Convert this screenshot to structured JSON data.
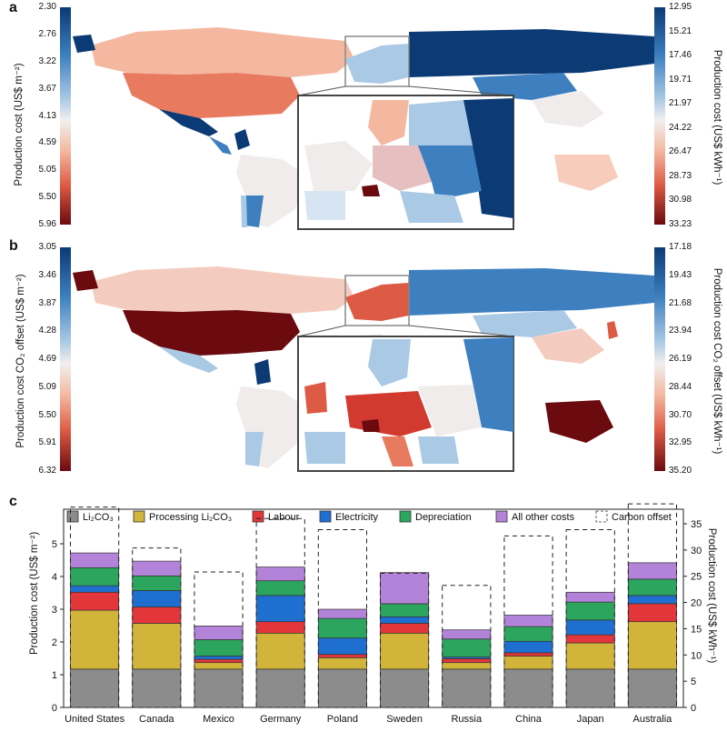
{
  "panels": {
    "a": {
      "letter": "a",
      "left_label": "Production cost (US$ m⁻²)",
      "left_ticks": [
        "2.30",
        "2.76",
        "3.22",
        "3.67",
        "4.13",
        "4.59",
        "5.05",
        "5.50",
        "5.96"
      ],
      "right_label": "Production cost (US$ kWh⁻¹)",
      "right_ticks": [
        "12.95",
        "15.21",
        "17.46",
        "19.71",
        "21.97",
        "24.22",
        "26.47",
        "28.73",
        "30.98",
        "33.23"
      ]
    },
    "b": {
      "letter": "b",
      "left_label": "Production cost CO₂ offset (US$ m⁻²)",
      "left_ticks": [
        "3.05",
        "3.46",
        "3.87",
        "4.28",
        "4.69",
        "5.09",
        "5.50",
        "5.91",
        "6.32"
      ],
      "right_label": "Production cost CO₂ offset (US$ kWh⁻¹)",
      "right_ticks": [
        "17.18",
        "19.43",
        "21.68",
        "23.94",
        "26.19",
        "28.44",
        "30.70",
        "32.95",
        "35.20"
      ]
    }
  },
  "colors": {
    "dark_blue": "#0b3a75",
    "mid_blue": "#3d7fbf",
    "light_blue": "#a9c9e4",
    "neutral": "#f2efee",
    "light_red": "#f4b8a0",
    "mid_red": "#dd5a45",
    "dark_red": "#6b0a0f",
    "ocean_border": "#888888"
  },
  "chart_data": {
    "type": "bar",
    "letter": "c",
    "categories": [
      "United States",
      "Canada",
      "Mexico",
      "Germany",
      "Poland",
      "Sweden",
      "Russia",
      "China",
      "Japan",
      "Australia"
    ],
    "ylabel": "Production cost (US$ m⁻²)",
    "y2label": "Production cost (US$ kWh⁻¹)",
    "ylim": [
      0,
      5
    ],
    "y2lim": [
      0,
      35
    ],
    "yticks": [
      0,
      1,
      2,
      3,
      4,
      5
    ],
    "y2ticks": [
      0,
      5,
      10,
      15,
      20,
      25,
      30,
      35
    ],
    "legend_position": "top",
    "series": [
      {
        "name": "Li₂CO₃",
        "color": "#8c8c8c",
        "values": [
          1.17,
          1.17,
          1.17,
          1.17,
          1.17,
          1.17,
          1.17,
          1.17,
          1.17,
          1.17
        ]
      },
      {
        "name": "Processing Li₂CO₃",
        "color": "#d2b43a",
        "values": [
          1.8,
          1.4,
          0.2,
          1.1,
          0.35,
          1.1,
          0.2,
          0.4,
          0.8,
          1.45
        ]
      },
      {
        "name": "Labour",
        "color": "#e2363a",
        "values": [
          0.55,
          0.5,
          0.1,
          0.35,
          0.1,
          0.3,
          0.12,
          0.1,
          0.25,
          0.55
        ]
      },
      {
        "name": "Electricity",
        "color": "#1f6fd1",
        "values": [
          0.2,
          0.5,
          0.1,
          0.8,
          0.5,
          0.2,
          0.05,
          0.35,
          0.45,
          0.25
        ]
      },
      {
        "name": "Depreciation",
        "color": "#2ca55f",
        "values": [
          0.55,
          0.45,
          0.5,
          0.45,
          0.6,
          0.4,
          0.55,
          0.45,
          0.55,
          0.5
        ]
      },
      {
        "name": "All other costs",
        "color": "#b383d9",
        "values": [
          0.45,
          0.45,
          0.42,
          0.42,
          0.28,
          0.95,
          0.28,
          0.35,
          0.3,
          0.5
        ]
      }
    ],
    "carbon_offset": {
      "name": "Carbon offset",
      "values": [
        6.12,
        4.87,
        4.14,
        5.77,
        5.43,
        4.1,
        3.73,
        5.24,
        5.43,
        6.22
      ]
    }
  }
}
